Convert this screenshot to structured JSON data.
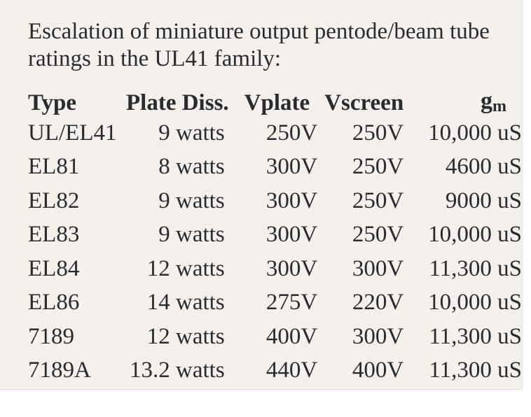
{
  "intro": "Escalation of miniature output pentode/beam tube ratings in the UL41 family:",
  "table": {
    "headers": {
      "type": "Type",
      "plate_diss": "Plate Diss.",
      "vplate": "Vplate",
      "vscreen": "Vscreen",
      "gm_base": "g",
      "gm_sub": "m"
    },
    "rows": [
      {
        "type": "UL/EL41",
        "plate_diss": "9 watts",
        "vplate": "250V",
        "vscreen": "250V",
        "gm": "10,000 uS"
      },
      {
        "type": "EL81",
        "plate_diss": "8 watts",
        "vplate": "300V",
        "vscreen": "250V",
        "gm": "4600 uS"
      },
      {
        "type": "EL82",
        "plate_diss": "9 watts",
        "vplate": "300V",
        "vscreen": "250V",
        "gm": "9000 uS"
      },
      {
        "type": "EL83",
        "plate_diss": "9 watts",
        "vplate": "300V",
        "vscreen": "250V",
        "gm": "10,000 uS"
      },
      {
        "type": "EL84",
        "plate_diss": "12 watts",
        "vplate": "300V",
        "vscreen": "300V",
        "gm": "11,300 uS"
      },
      {
        "type": "EL86",
        "plate_diss": "14 watts",
        "vplate": "275V",
        "vscreen": "220V",
        "gm": "10,000 uS"
      },
      {
        "type": "7189",
        "plate_diss": "12 watts",
        "vplate": "400V",
        "vscreen": "300V",
        "gm": "11,300 uS"
      },
      {
        "type": "7189A",
        "plate_diss": "13.2 watts",
        "vplate": "440V",
        "vscreen": "400V",
        "gm": "11,300 uS"
      }
    ]
  }
}
